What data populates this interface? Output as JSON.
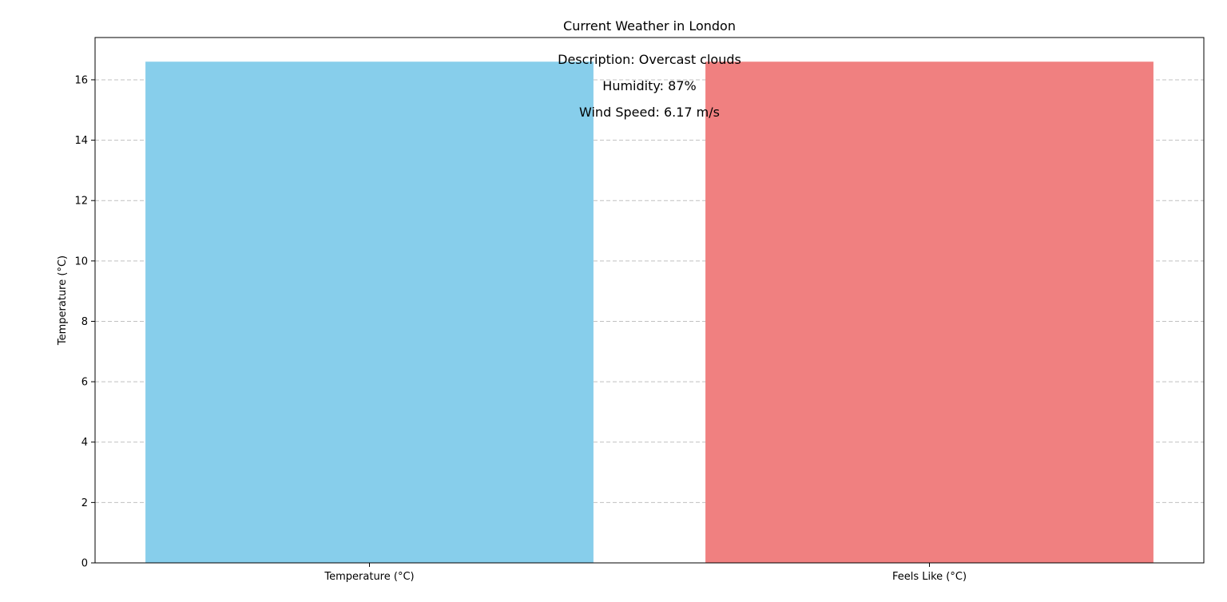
{
  "chart_data": {
    "type": "bar",
    "title": "Current Weather in London",
    "xlabel": "",
    "ylabel": "Temperature (°C)",
    "categories": [
      "Temperature (°C)",
      "Feels Like (°C)"
    ],
    "values": [
      16.6,
      16.6
    ],
    "colors": [
      "#87ceeb",
      "#f08080"
    ],
    "ylim": [
      0,
      17.4
    ],
    "yticks": [
      0,
      2,
      4,
      6,
      8,
      10,
      12,
      14,
      16
    ],
    "grid": "y-dashed",
    "legend": "none",
    "annotations": [
      "Description: Overcast clouds",
      "Humidity: 87%",
      "Wind Speed: 6.17 m/s"
    ]
  }
}
